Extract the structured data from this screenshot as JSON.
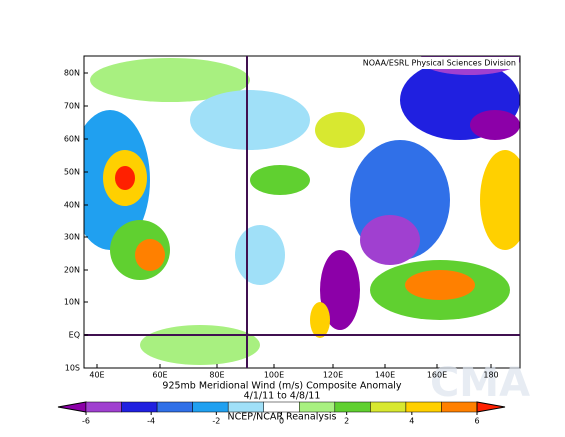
{
  "header": {
    "source": "NOAA/ESRL Physical Sciences Division"
  },
  "map": {
    "lat_labels": [
      "80N",
      "70N",
      "60N",
      "50N",
      "40N",
      "30N",
      "20N",
      "10N",
      "EQ",
      "10S"
    ],
    "lon_labels": [
      "40E",
      "60E",
      "80E",
      "100E",
      "120E",
      "140E",
      "160E",
      "180"
    ]
  },
  "caption": {
    "title": "925mb Meridional Wind (m/s) Composite Anomaly",
    "dates": "4/1/11  to 4/8/11",
    "credit": "NCEP/NCAR Reanalysis"
  },
  "colorbar": {
    "ticks": [
      -6,
      -4,
      -2,
      0,
      2,
      4,
      6
    ],
    "colors": [
      "#8c00a8",
      "#a040d0",
      "#2020e0",
      "#3070e8",
      "#20a0f0",
      "#a0e0f8",
      "#ffffff",
      "#a8f080",
      "#60d030",
      "#d8e830",
      "#ffd000",
      "#ff8000",
      "#ff2000"
    ]
  },
  "watermark": "CMA"
}
